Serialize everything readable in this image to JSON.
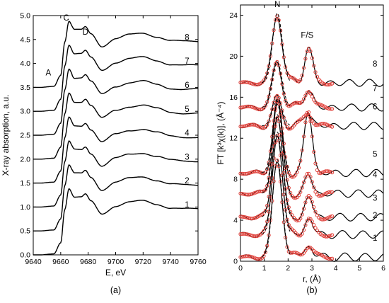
{
  "chart_data": [
    {
      "id": "a",
      "type": "line",
      "caption": "(a)",
      "xlabel": "E, eV",
      "ylabel": "X-ray absorption, a.u.",
      "xlim": [
        9640,
        9760
      ],
      "ylim": [
        0,
        5
      ],
      "xticks": [
        9640,
        9660,
        9680,
        9700,
        9720,
        9740,
        9760
      ],
      "yticks": [
        "0.0",
        "0.5",
        "1.0",
        "1.5",
        "2.0",
        "2.5",
        "3.0",
        "3.5",
        "4.0",
        "4.5",
        "5.0"
      ],
      "peak_labels": [
        {
          "text": "A",
          "x": 9651,
          "y": 3.75
        },
        {
          "text": "C",
          "x": 9664,
          "y": 4.9
        },
        {
          "text": "D",
          "x": 9678,
          "y": 4.6
        }
      ],
      "series": [
        {
          "name": "1",
          "offset": 0.0,
          "shape_at": [
            9645,
            9655,
            9660,
            9663,
            9666,
            9670,
            9675,
            9678,
            9682,
            9690,
            9700,
            9710,
            9720,
            9730,
            9740,
            9750,
            9760
          ],
          "values": [
            0.0,
            0.02,
            0.25,
            0.95,
            1.38,
            1.2,
            1.2,
            1.26,
            1.12,
            0.86,
            1.02,
            1.1,
            1.13,
            1.06,
            0.98,
            0.96,
            0.96
          ]
        },
        {
          "name": "2",
          "offset": 0.5
        },
        {
          "name": "3",
          "offset": 1.0
        },
        {
          "name": "4",
          "offset": 1.5
        },
        {
          "name": "5",
          "offset": 2.0
        },
        {
          "name": "6",
          "offset": 2.5
        },
        {
          "name": "7",
          "offset": 3.0
        },
        {
          "name": "8",
          "offset": 3.5
        }
      ]
    },
    {
      "id": "b",
      "type": "line",
      "caption": "(b)",
      "xlabel": "r, (Å)",
      "ylabel": "FT [k³χ(k)], (Å⁻⁴)",
      "xlim": [
        0,
        6
      ],
      "ylim": [
        0,
        25
      ],
      "xticks": [
        "0",
        "1",
        "2",
        "3",
        "4",
        "5",
        "6"
      ],
      "yticks": [
        "0",
        "4",
        "8",
        "12",
        "16",
        "20",
        "24"
      ],
      "peak_labels": [
        {
          "text": "N",
          "x": 1.55,
          "y": 24.8
        },
        {
          "text": "F/S",
          "x": 2.8,
          "y": 21.8
        }
      ],
      "series_styles": [
        {
          "name": "experiment",
          "color": "#000000",
          "style": "solid"
        },
        {
          "name": "fit",
          "color": "#e0403a",
          "style": "open-circles"
        },
        {
          "name": "fit-envelope",
          "color": "#000000",
          "style": "dashed"
        }
      ],
      "spectra": [
        {
          "name": "1",
          "baseline": 0.4,
          "N_peak": 9.5,
          "FS_peak": 1.3
        },
        {
          "name": "2",
          "baseline": 2.6,
          "N_peak": 10.0,
          "FS_peak": 1.6
        },
        {
          "name": "3",
          "baseline": 4.3,
          "N_peak": 10.0,
          "FS_peak": 1.8
        },
        {
          "name": "4",
          "baseline": 6.6,
          "N_peak": 9.0,
          "FS_peak": 1.6
        },
        {
          "name": "5",
          "baseline": 8.6,
          "N_peak": 6.7,
          "FS_peak": 5.9
        },
        {
          "name": "6",
          "baseline": 13.2,
          "N_peak": 2.6,
          "FS_peak": 1.3
        },
        {
          "name": "7",
          "baseline": 15.0,
          "N_peak": 4.4,
          "FS_peak": 1.9
        },
        {
          "name": "8",
          "baseline": 17.4,
          "N_peak": 6.8,
          "FS_peak": 3.5
        }
      ]
    }
  ]
}
